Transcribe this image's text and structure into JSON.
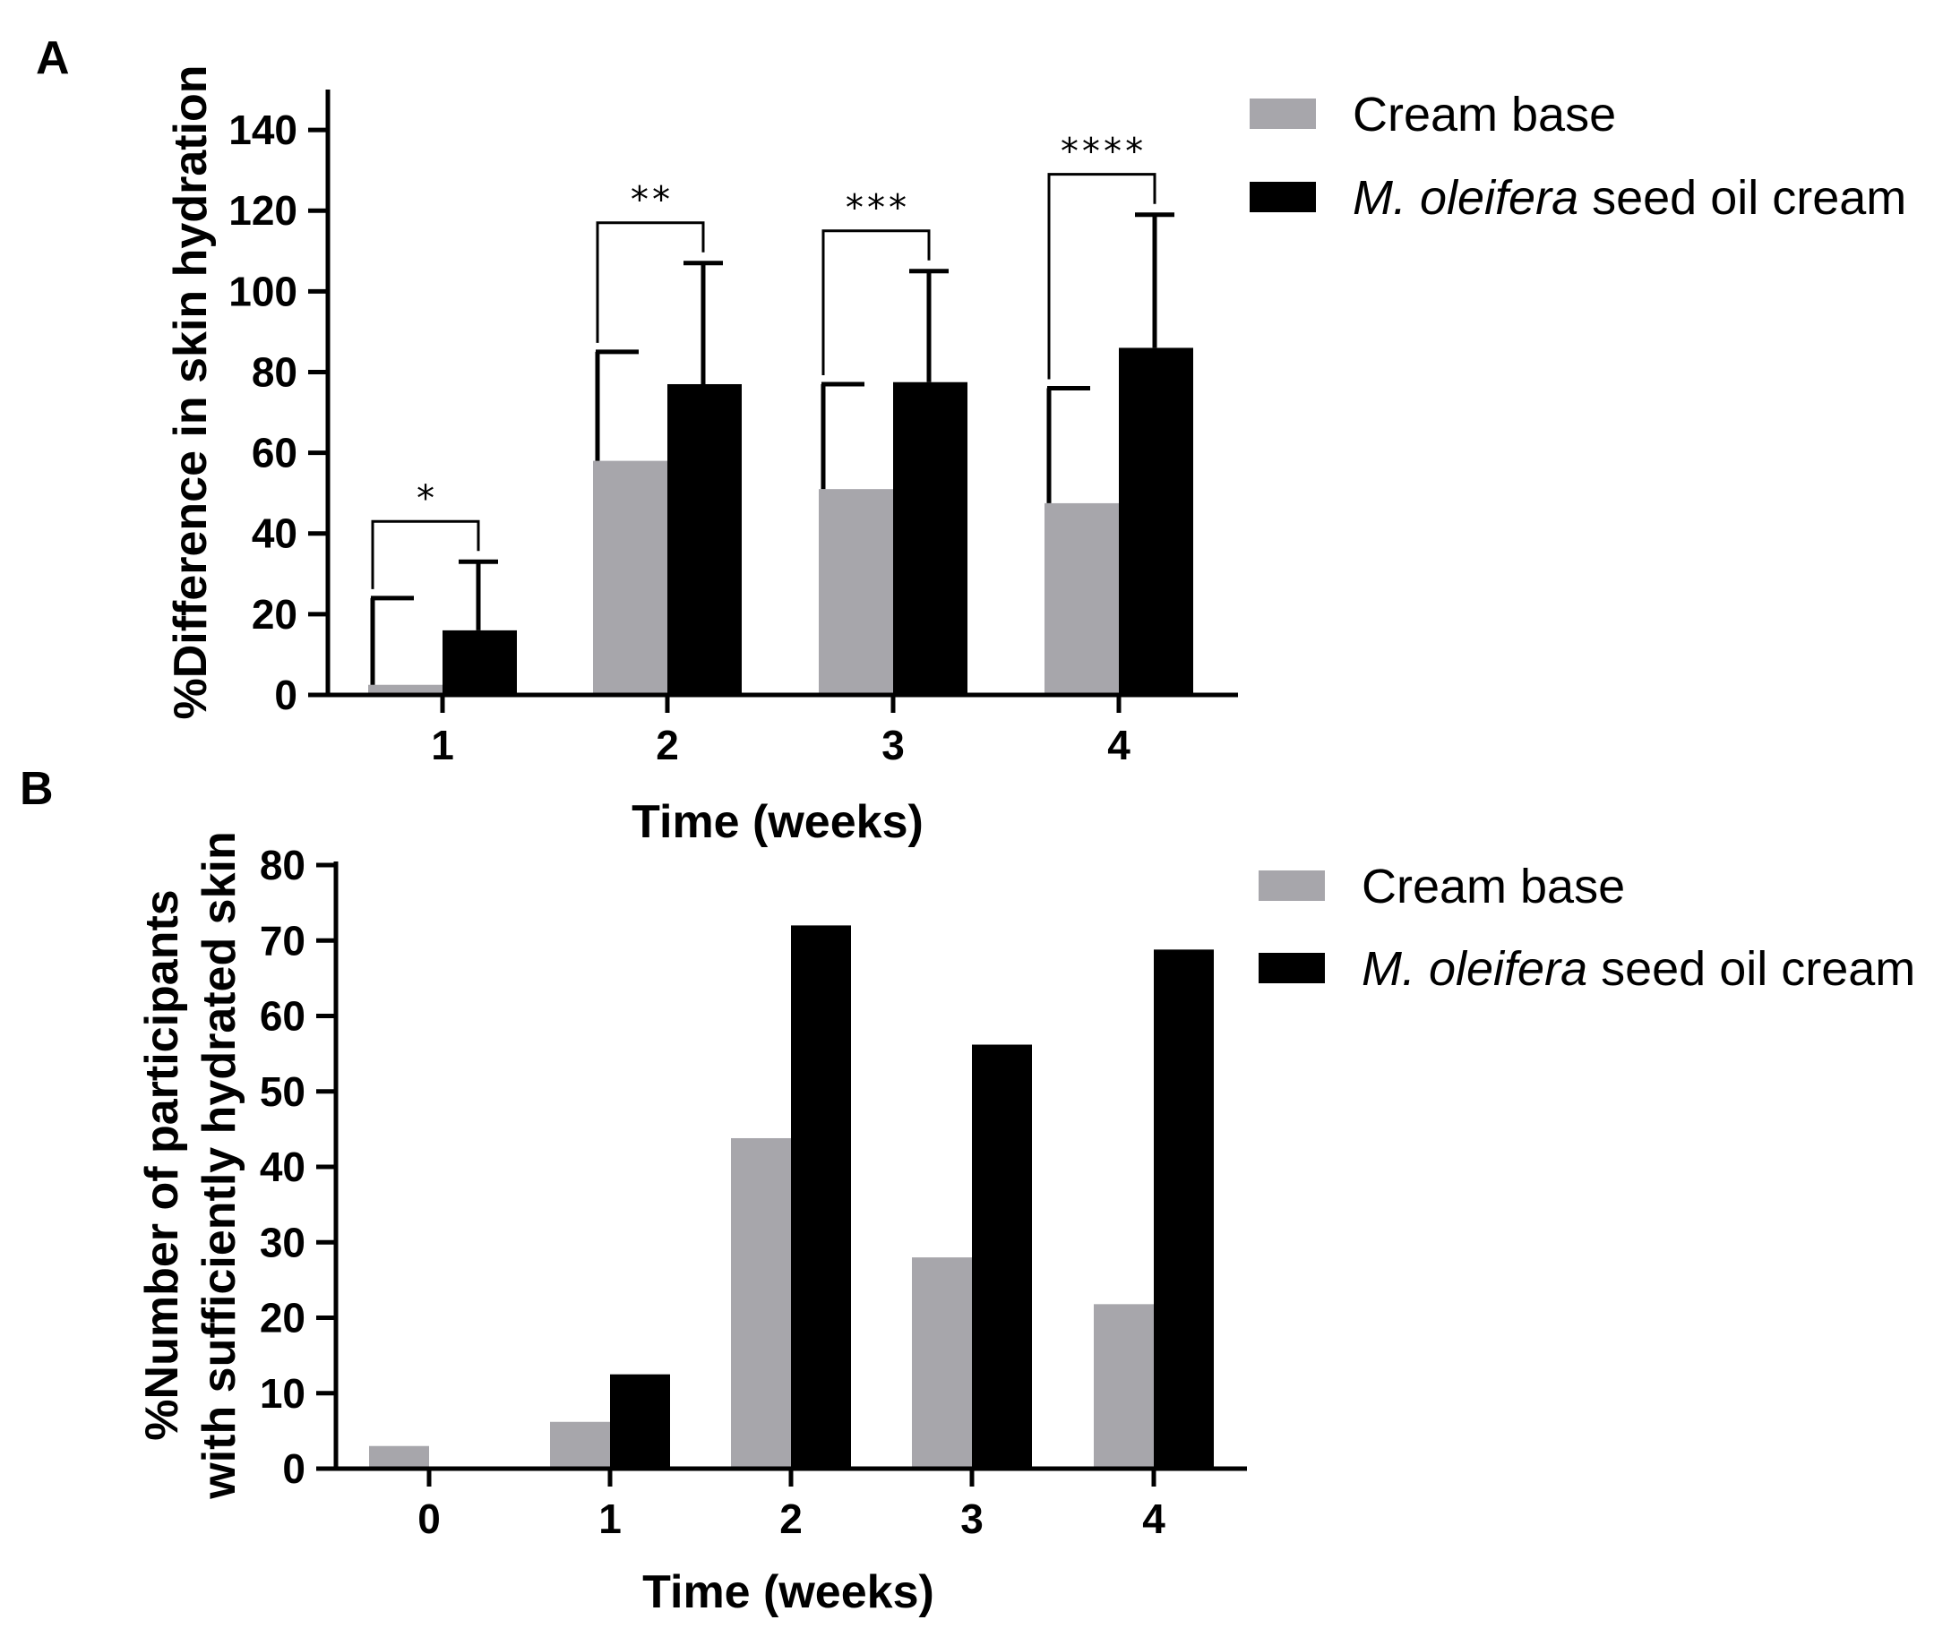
{
  "colors": {
    "cream_base": "#a7a6ab",
    "moringa": "#000000"
  },
  "chart_data": [
    {
      "panel": "A",
      "type": "bar",
      "categories": [
        "1",
        "2",
        "3",
        "4"
      ],
      "series": [
        {
          "name": "Cream base",
          "values": [
            2.5,
            58,
            51,
            47.5
          ],
          "errors": [
            24,
            85,
            77,
            76
          ]
        },
        {
          "name": "M. oleifera seed oil cream",
          "name_italic": "M. oleifera",
          "name_rest": " seed oil cream",
          "values": [
            16,
            77,
            77.5,
            86
          ],
          "errors": [
            33,
            107,
            105,
            119
          ]
        }
      ],
      "significance": [
        "*",
        "**",
        "***",
        "****"
      ],
      "ylabel": "%Difference in skin hydration",
      "xlabel": "Time (weeks)",
      "ylim": [
        0,
        150
      ],
      "yticks": [
        0,
        20,
        40,
        60,
        80,
        100,
        120,
        140
      ]
    },
    {
      "panel": "B",
      "type": "bar",
      "categories": [
        "0",
        "1",
        "2",
        "3",
        "4"
      ],
      "series": [
        {
          "name": "Cream base",
          "values": [
            3,
            6.2,
            43.8,
            28,
            21.8
          ]
        },
        {
          "name": "M. oleifera seed oil cream",
          "name_italic": "M. oleifera",
          "name_rest": " seed oil cream",
          "values": [
            0,
            12.5,
            72,
            56.2,
            68.8
          ]
        }
      ],
      "ylabel_line1": "%Number of participants",
      "ylabel_line2": "with sufficiently hydrated skin",
      "xlabel": "Time (weeks)",
      "ylim": [
        0,
        80
      ],
      "yticks": [
        0,
        10,
        20,
        30,
        40,
        50,
        60,
        70,
        80
      ]
    }
  ]
}
